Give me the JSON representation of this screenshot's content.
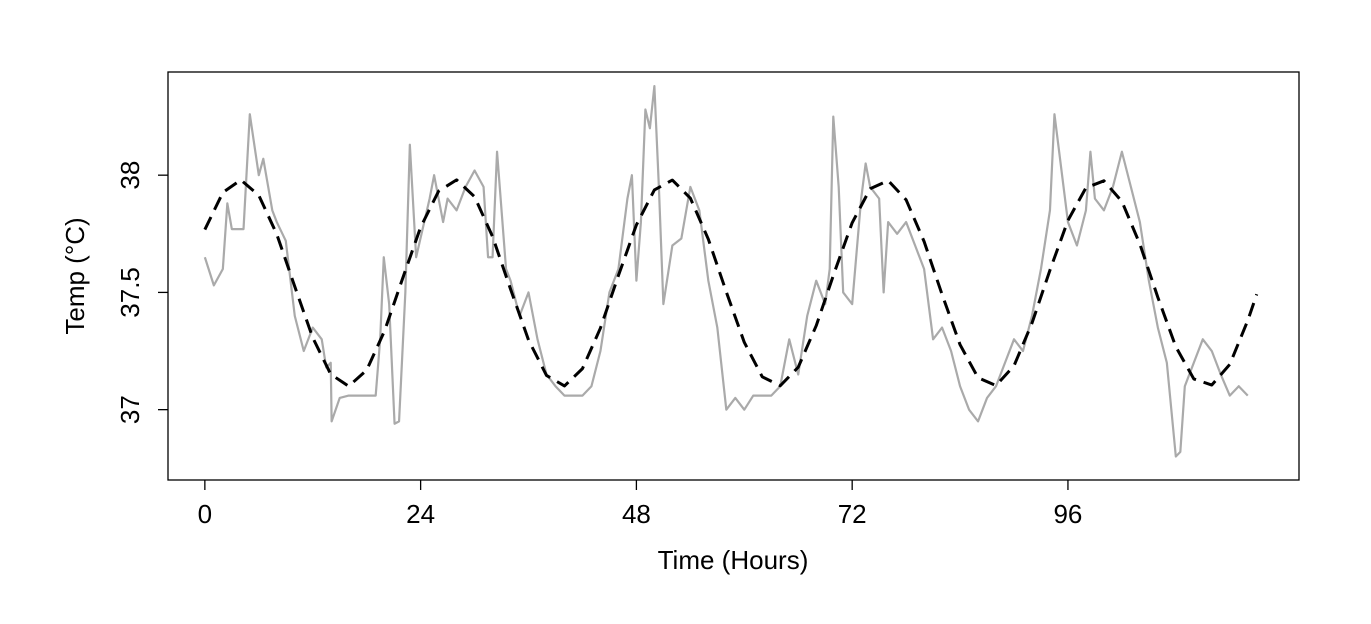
{
  "chart_data": {
    "type": "line",
    "xlabel": "Time (Hours)",
    "ylabel": "Temp (°C)",
    "xlim": [
      -4.1,
      121.7
    ],
    "ylim": [
      36.7,
      38.44
    ],
    "xticks": [
      0,
      24,
      48,
      72,
      96
    ],
    "yticks": [
      37,
      37.5,
      38
    ],
    "series": [
      {
        "color": "#aaaaaa",
        "dash": false,
        "x": [
          0,
          1,
          2,
          2.5,
          3,
          4.3,
          5,
          6,
          6.5,
          7.5,
          8,
          9,
          10,
          11,
          12,
          13,
          13.5,
          14,
          14.1,
          15,
          16,
          19,
          19.5,
          19.9,
          20.5,
          21.1,
          21.6,
          22.3,
          22.8,
          23.5,
          25,
          25.5,
          26.5,
          27,
          28,
          29,
          30,
          31,
          31.5,
          32,
          32.5,
          33.5,
          34,
          35,
          36,
          37,
          38,
          39,
          40,
          42,
          43,
          44,
          45,
          46,
          47,
          47.5,
          48,
          48.5,
          49,
          49.5,
          50,
          50.5,
          51,
          52,
          53,
          54,
          55,
          56,
          57,
          58,
          59,
          60,
          61,
          63,
          64,
          65,
          66,
          67,
          68,
          69,
          69.5,
          69.9,
          70.5,
          71,
          72,
          73,
          73.5,
          74,
          75,
          75.5,
          76,
          77,
          78,
          79,
          80,
          81,
          82,
          83,
          84,
          85,
          86,
          87,
          88,
          89,
          90,
          91,
          92,
          93,
          94,
          94.5,
          96,
          97,
          98,
          98.5,
          99,
          100,
          101,
          102,
          103,
          104,
          105,
          106,
          107,
          108,
          108.5,
          109,
          110,
          111,
          112,
          113,
          114,
          115,
          116
        ],
        "values": [
          37.65,
          37.53,
          37.6,
          37.88,
          37.77,
          37.77,
          38.26,
          38.0,
          38.07,
          37.85,
          37.8,
          37.72,
          37.4,
          37.25,
          37.35,
          37.3,
          37.18,
          37.2,
          36.95,
          37.05,
          37.06,
          37.06,
          37.3,
          37.65,
          37.45,
          36.94,
          36.95,
          37.5,
          38.13,
          37.65,
          37.9,
          38.0,
          37.8,
          37.9,
          37.85,
          37.95,
          38.02,
          37.95,
          37.65,
          37.65,
          38.1,
          37.6,
          37.55,
          37.4,
          37.5,
          37.3,
          37.15,
          37.1,
          37.06,
          37.06,
          37.1,
          37.25,
          37.5,
          37.6,
          37.9,
          38.0,
          37.55,
          37.8,
          38.28,
          38.2,
          38.38,
          37.95,
          37.45,
          37.7,
          37.73,
          37.95,
          37.85,
          37.55,
          37.35,
          37.0,
          37.05,
          37.0,
          37.06,
          37.06,
          37.1,
          37.3,
          37.15,
          37.4,
          37.55,
          37.45,
          37.6,
          38.25,
          37.95,
          37.5,
          37.45,
          37.9,
          38.05,
          37.95,
          37.9,
          37.5,
          37.8,
          37.75,
          37.8,
          37.7,
          37.6,
          37.3,
          37.35,
          37.25,
          37.1,
          37.0,
          36.95,
          37.05,
          37.1,
          37.2,
          37.3,
          37.25,
          37.4,
          37.6,
          37.85,
          38.26,
          37.8,
          37.7,
          37.85,
          38.1,
          37.9,
          37.85,
          37.95,
          38.1,
          37.95,
          37.8,
          37.55,
          37.35,
          37.2,
          36.8,
          36.82,
          37.1,
          37.2,
          37.3,
          37.25,
          37.15,
          37.06,
          37.1,
          37.06
        ]
      },
      {
        "color": "#000000",
        "dash": true,
        "x": [
          0,
          2,
          4,
          6,
          8,
          10,
          12,
          14,
          16,
          18,
          20,
          22,
          24,
          26,
          28,
          30,
          32,
          34,
          36,
          38,
          40,
          42,
          44,
          46,
          48,
          50,
          52,
          54,
          56,
          58,
          60,
          62,
          64,
          66,
          68,
          70,
          72,
          74,
          76,
          78,
          80,
          82,
          84,
          86,
          88,
          90,
          92,
          94,
          96,
          98,
          100,
          102,
          104,
          106,
          108,
          110,
          112,
          114,
          116,
          117
        ],
        "values": [
          37.768,
          37.926,
          37.98,
          37.914,
          37.748,
          37.525,
          37.307,
          37.151,
          37.1,
          37.169,
          37.337,
          37.56,
          37.778,
          37.932,
          37.98,
          37.908,
          37.738,
          37.514,
          37.297,
          37.146,
          37.101,
          37.175,
          37.348,
          37.572,
          37.788,
          37.937,
          37.979,
          37.902,
          37.727,
          37.502,
          37.287,
          37.14,
          37.102,
          37.181,
          37.358,
          37.583,
          37.797,
          37.942,
          37.977,
          37.895,
          37.717,
          37.491,
          37.277,
          37.136,
          37.103,
          37.187,
          37.369,
          37.595,
          37.807,
          37.946,
          37.976,
          37.888,
          37.706,
          37.479,
          37.268,
          37.131,
          37.105,
          37.193,
          37.38,
          37.492
        ]
      }
    ]
  }
}
